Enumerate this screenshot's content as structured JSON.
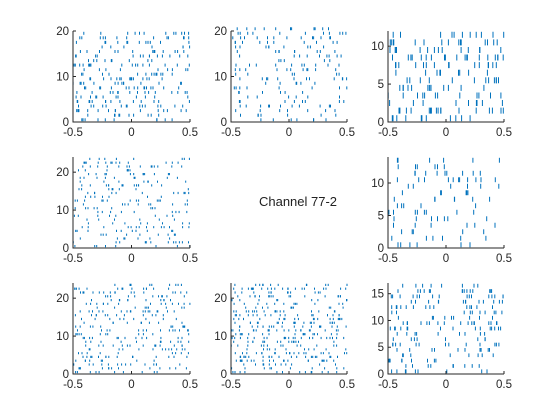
{
  "figure": {
    "center_label": "Channel 77-2"
  },
  "colors": {
    "spike": "#0072bd",
    "axis": "#262626",
    "background": "#ffffff"
  },
  "chart_data": [
    {
      "panel": "top-left",
      "type": "scatter",
      "marker": "vertical tick",
      "xlim": [
        -0.5,
        0.5
      ],
      "ylim": [
        0,
        20
      ],
      "xticks": [
        -0.5,
        0,
        0.5
      ],
      "yticks": [
        0,
        10,
        20
      ],
      "xtick_labels": [
        "-0.5",
        "0",
        "0.5"
      ],
      "ytick_labels": [
        "0",
        "10",
        "20"
      ],
      "trials": 20,
      "spikes_per_trial": 12,
      "seed": 11
    },
    {
      "panel": "top-middle",
      "type": "scatter",
      "marker": "vertical tick",
      "xlim": [
        -0.5,
        0.5
      ],
      "ylim": [
        0,
        20
      ],
      "xticks": [
        -0.5,
        0,
        0.5
      ],
      "yticks": [
        0,
        10,
        20
      ],
      "xtick_labels": [
        "-0.5",
        "0",
        "0.5"
      ],
      "ytick_labels": [
        "0",
        "10",
        "20"
      ],
      "trials": 21,
      "spikes_per_trial": 9,
      "seed": 23
    },
    {
      "panel": "top-right",
      "type": "scatter",
      "marker": "vertical tick",
      "xlim": [
        -0.5,
        0.5
      ],
      "ylim": [
        0,
        12
      ],
      "xticks": [
        -0.5,
        0,
        0.5
      ],
      "yticks": [
        0,
        5,
        10
      ],
      "xtick_labels": [
        "-0.5",
        "0",
        "0.5"
      ],
      "ytick_labels": [
        "0",
        "5",
        "10"
      ],
      "trials": 12,
      "spikes_per_trial": 14,
      "seed": 37
    },
    {
      "panel": "middle-left",
      "type": "scatter",
      "marker": "vertical tick",
      "xlim": [
        -0.5,
        0.5
      ],
      "ylim": [
        0,
        24
      ],
      "xticks": [
        -0.5,
        0,
        0.5
      ],
      "yticks": [
        0,
        10,
        20
      ],
      "xtick_labels": [
        "-0.5",
        "0",
        "0.5"
      ],
      "ytick_labels": [
        "0",
        "10",
        "20"
      ],
      "trials": 24,
      "spikes_per_trial": 10,
      "seed": 41
    },
    {
      "panel": "middle-right",
      "type": "scatter",
      "marker": "vertical tick",
      "xlim": [
        -0.5,
        0.5
      ],
      "ylim": [
        0,
        14
      ],
      "xticks": [
        -0.5,
        0,
        0.5
      ],
      "yticks": [
        0,
        5,
        10
      ],
      "xtick_labels": [
        "-0.5",
        "0",
        "0.5"
      ],
      "ytick_labels": [
        "0",
        "5",
        "10"
      ],
      "trials": 14,
      "spikes_per_trial": 8,
      "seed": 53
    },
    {
      "panel": "bottom-left",
      "type": "scatter",
      "marker": "vertical tick",
      "xlim": [
        -0.5,
        0.5
      ],
      "ylim": [
        0,
        24
      ],
      "xticks": [
        -0.5,
        0,
        0.5
      ],
      "yticks": [
        0,
        10,
        20
      ],
      "xtick_labels": [
        "-0.5",
        "0",
        "0.5"
      ],
      "ytick_labels": [
        "0",
        "10",
        "20"
      ],
      "trials": 24,
      "spikes_per_trial": 12,
      "seed": 67
    },
    {
      "panel": "bottom-middle",
      "type": "scatter",
      "marker": "vertical tick",
      "xlim": [
        -0.5,
        0.5
      ],
      "ylim": [
        0,
        24
      ],
      "xticks": [
        -0.5,
        0,
        0.5
      ],
      "yticks": [
        0,
        10,
        20
      ],
      "xtick_labels": [
        "-0.5",
        "0",
        "0.5"
      ],
      "ytick_labels": [
        "0",
        "10",
        "20"
      ],
      "trials": 24,
      "spikes_per_trial": 16,
      "seed": 79
    },
    {
      "panel": "bottom-right",
      "type": "scatter",
      "marker": "vertical tick",
      "xlim": [
        -0.5,
        0.5
      ],
      "ylim": [
        0,
        17
      ],
      "xticks": [
        -0.5,
        0,
        0.5
      ],
      "yticks": [
        0,
        5,
        10,
        15
      ],
      "xtick_labels": [
        "-0.5",
        "0",
        "0.5"
      ],
      "ytick_labels": [
        "0",
        "5",
        "10",
        "15"
      ],
      "trials": 17,
      "spikes_per_trial": 12,
      "seed": 97
    }
  ]
}
